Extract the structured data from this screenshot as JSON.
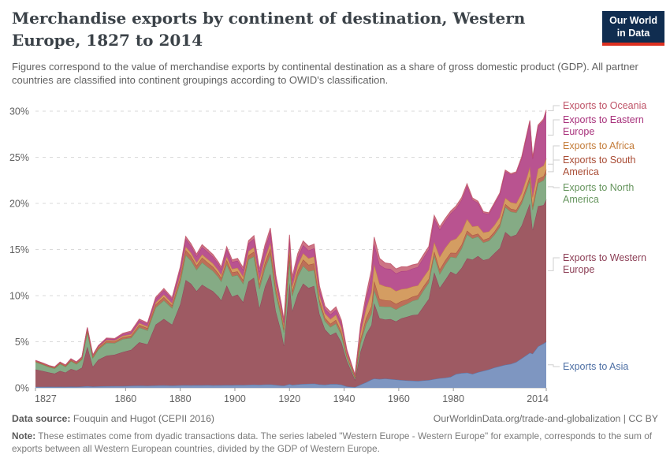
{
  "header": {
    "title": "Merchandise exports by continent of destination, Western Europe, 1827 to 2014",
    "subtitle": "Figures correspond to the value of merchandise exports by continental destination as a share of gross domestic product (GDP). All partner countries are classified into continent groupings according to OWID's classification.",
    "logo": {
      "line1": "Our World",
      "line2": "in Data",
      "bg_color": "#102d50",
      "accent_color": "#dc3020"
    }
  },
  "chart_data": {
    "type": "area",
    "stacked": true,
    "unit": "% of GDP",
    "grid": "dashed horizontal",
    "legend_position": "right",
    "xlim": [
      1827,
      2014
    ],
    "ylim": [
      0,
      30
    ],
    "x_ticks": [
      1827,
      1860,
      1880,
      1900,
      1920,
      1940,
      1960,
      1980,
      2014
    ],
    "y_ticks": [
      0,
      5,
      10,
      15,
      20,
      25,
      30
    ],
    "y_tick_suffix": "%",
    "x": [
      1827,
      1830,
      1832,
      1834,
      1836,
      1838,
      1840,
      1842,
      1844,
      1846,
      1848,
      1850,
      1853,
      1856,
      1859,
      1862,
      1865,
      1868,
      1871,
      1874,
      1877,
      1880,
      1882,
      1884,
      1886,
      1888,
      1890,
      1892,
      1894,
      1895,
      1897,
      1899,
      1901,
      1903,
      1905,
      1907,
      1909,
      1911,
      1913,
      1915,
      1917,
      1918,
      1920,
      1921,
      1923,
      1925,
      1927,
      1929,
      1931,
      1933,
      1935,
      1937,
      1939,
      1941,
      1944,
      1946,
      1948,
      1950,
      1951,
      1953,
      1955,
      1957,
      1959,
      1961,
      1963,
      1965,
      1967,
      1969,
      1971,
      1973,
      1975,
      1977,
      1979,
      1981,
      1983,
      1985,
      1987,
      1989,
      1991,
      1993,
      1995,
      1997,
      1999,
      2001,
      2003,
      2005,
      2007,
      2008,
      2009,
      2011,
      2013,
      2014
    ],
    "series": [
      {
        "name": "asia",
        "label": "Exports to Asia",
        "color": "#4d6fa4",
        "fill": "#7e96c1",
        "values": [
          0.1,
          0.1,
          0.12,
          0.1,
          0.12,
          0.11,
          0.13,
          0.12,
          0.14,
          0.18,
          0.14,
          0.16,
          0.18,
          0.2,
          0.19,
          0.22,
          0.25,
          0.22,
          0.26,
          0.28,
          0.25,
          0.28,
          0.3,
          0.28,
          0.3,
          0.29,
          0.31,
          0.28,
          0.3,
          0.29,
          0.31,
          0.3,
          0.32,
          0.31,
          0.33,
          0.35,
          0.33,
          0.36,
          0.38,
          0.32,
          0.26,
          0.25,
          0.4,
          0.32,
          0.38,
          0.42,
          0.44,
          0.46,
          0.38,
          0.34,
          0.4,
          0.42,
          0.35,
          0.15,
          0.08,
          0.35,
          0.6,
          0.9,
          1.0,
          0.95,
          1.0,
          0.95,
          0.9,
          0.85,
          0.8,
          0.78,
          0.75,
          0.8,
          0.85,
          0.95,
          1.05,
          1.1,
          1.2,
          1.5,
          1.6,
          1.65,
          1.5,
          1.7,
          1.85,
          2.0,
          2.2,
          2.35,
          2.5,
          2.6,
          2.8,
          3.2,
          3.6,
          3.8,
          3.7,
          4.5,
          4.8,
          5.0
        ]
      },
      {
        "name": "western_europe",
        "label": "Exports to Western Europe",
        "color": "#8d4057",
        "fill": "#9e5a63",
        "values": [
          1.9,
          1.7,
          1.55,
          1.45,
          1.72,
          1.55,
          1.92,
          1.75,
          2.05,
          4.3,
          2.15,
          2.9,
          3.3,
          3.4,
          3.7,
          3.9,
          4.7,
          4.5,
          6.6,
          7.2,
          6.6,
          8.8,
          11.4,
          11.0,
          10.2,
          10.9,
          10.5,
          10.2,
          9.6,
          9.2,
          10.8,
          9.6,
          9.8,
          9.0,
          11.2,
          11.6,
          8.3,
          10.6,
          12.0,
          8.0,
          5.8,
          4.3,
          11.0,
          8.0,
          9.8,
          10.9,
          10.4,
          10.6,
          7.6,
          6.0,
          5.3,
          5.6,
          4.6,
          2.8,
          0.8,
          3.6,
          5.2,
          5.9,
          8.2,
          6.6,
          6.4,
          6.5,
          6.3,
          6.7,
          6.9,
          7.1,
          7.2,
          8.0,
          8.8,
          11.6,
          9.8,
          10.6,
          11.4,
          10.8,
          11.4,
          12.4,
          12.4,
          12.6,
          12.0,
          12.0,
          12.4,
          12.8,
          14.4,
          13.8,
          13.8,
          14.4,
          15.6,
          16.2,
          13.4,
          15.2,
          15.0,
          15.4
        ]
      },
      {
        "name": "north_america",
        "label": "Exports to North America",
        "color": "#66955e",
        "fill": "#85ab85",
        "values": [
          0.8,
          0.68,
          0.58,
          0.55,
          0.75,
          0.62,
          0.85,
          0.7,
          0.88,
          1.55,
          0.95,
          1.1,
          1.4,
          1.25,
          1.4,
          1.3,
          1.6,
          1.5,
          1.85,
          2.0,
          1.8,
          2.4,
          2.7,
          2.5,
          2.3,
          2.4,
          2.3,
          2.2,
          2.1,
          2.05,
          2.3,
          2.2,
          2.1,
          2.0,
          2.4,
          2.3,
          2.1,
          2.0,
          2.05,
          1.9,
          1.6,
          1.45,
          2.4,
          1.65,
          1.9,
          1.9,
          1.8,
          1.7,
          1.1,
          0.9,
          0.9,
          0.95,
          0.8,
          0.4,
          0.2,
          0.9,
          1.1,
          1.2,
          1.4,
          1.3,
          1.4,
          1.35,
          1.3,
          1.3,
          1.4,
          1.55,
          1.65,
          1.75,
          1.75,
          1.8,
          1.5,
          1.65,
          1.6,
          1.8,
          2.1,
          2.6,
          2.3,
          2.1,
          1.9,
          1.95,
          2.0,
          2.3,
          2.7,
          2.7,
          2.4,
          2.4,
          2.4,
          2.5,
          2.2,
          2.5,
          2.7,
          2.8
        ]
      },
      {
        "name": "south_america",
        "label": "Exports to South America",
        "color": "#a94c35",
        "fill": "#bc6f59",
        "values": [
          0.08,
          0.08,
          0.07,
          0.07,
          0.09,
          0.08,
          0.1,
          0.09,
          0.11,
          0.2,
          0.12,
          0.15,
          0.18,
          0.16,
          0.2,
          0.22,
          0.28,
          0.25,
          0.32,
          0.36,
          0.3,
          0.45,
          0.55,
          0.5,
          0.46,
          0.52,
          0.5,
          0.45,
          0.4,
          0.38,
          0.45,
          0.42,
          0.4,
          0.38,
          0.45,
          0.5,
          0.48,
          0.6,
          0.7,
          0.5,
          0.38,
          0.35,
          0.7,
          0.5,
          0.62,
          0.7,
          0.7,
          0.72,
          0.45,
          0.36,
          0.35,
          0.4,
          0.33,
          0.15,
          0.06,
          0.45,
          0.65,
          0.85,
          1.0,
          0.8,
          0.7,
          0.65,
          0.6,
          0.55,
          0.48,
          0.45,
          0.45,
          0.44,
          0.42,
          0.45,
          0.5,
          0.48,
          0.45,
          0.52,
          0.42,
          0.4,
          0.34,
          0.32,
          0.3,
          0.3,
          0.33,
          0.36,
          0.34,
          0.32,
          0.3,
          0.35,
          0.42,
          0.45,
          0.4,
          0.45,
          0.44,
          0.45
        ]
      },
      {
        "name": "africa",
        "label": "Exports to Africa",
        "color": "#c47d3b",
        "fill": "#d49d62",
        "values": [
          0.04,
          0.04,
          0.04,
          0.04,
          0.05,
          0.05,
          0.06,
          0.06,
          0.07,
          0.12,
          0.08,
          0.1,
          0.12,
          0.12,
          0.15,
          0.16,
          0.2,
          0.18,
          0.22,
          0.26,
          0.22,
          0.32,
          0.36,
          0.34,
          0.32,
          0.36,
          0.36,
          0.35,
          0.33,
          0.32,
          0.4,
          0.38,
          0.4,
          0.38,
          0.45,
          0.48,
          0.46,
          0.52,
          0.6,
          0.48,
          0.38,
          0.35,
          0.65,
          0.5,
          0.6,
          0.68,
          0.7,
          0.75,
          0.55,
          0.48,
          0.5,
          0.55,
          0.48,
          0.25,
          0.12,
          0.65,
          1.0,
          1.5,
          1.8,
          1.6,
          1.5,
          1.45,
          1.4,
          1.3,
          1.2,
          1.1,
          1.05,
          1.0,
          1.0,
          1.0,
          1.35,
          1.35,
          1.3,
          1.55,
          1.4,
          1.25,
          0.95,
          0.85,
          0.8,
          0.7,
          0.7,
          0.7,
          0.65,
          0.7,
          0.7,
          0.75,
          0.9,
          1.0,
          0.95,
          1.1,
          1.15,
          1.2
        ]
      },
      {
        "name": "eastern_europe",
        "label": "Exports to Eastern Europe",
        "color": "#a8327c",
        "fill": "#b95390",
        "values": [
          0.04,
          0.04,
          0.04,
          0.04,
          0.05,
          0.05,
          0.07,
          0.07,
          0.08,
          0.15,
          0.1,
          0.12,
          0.16,
          0.16,
          0.2,
          0.25,
          0.3,
          0.3,
          0.42,
          0.5,
          0.45,
          0.65,
          0.85,
          0.75,
          0.7,
          0.8,
          0.78,
          0.74,
          0.68,
          0.65,
          0.8,
          0.74,
          0.76,
          0.72,
          0.85,
          0.95,
          0.9,
          1.05,
          1.2,
          0.7,
          0.45,
          0.4,
          1.0,
          0.7,
          0.85,
          0.88,
          0.86,
          0.9,
          0.6,
          0.5,
          0.5,
          0.55,
          0.5,
          0.3,
          0.1,
          0.55,
          1.0,
          1.8,
          2.2,
          2.1,
          1.95,
          2.0,
          1.9,
          1.95,
          1.9,
          1.95,
          2.0,
          2.1,
          2.2,
          2.6,
          2.95,
          2.9,
          2.95,
          3.3,
          3.45,
          3.6,
          2.9,
          2.5,
          2.1,
          1.9,
          2.3,
          2.5,
          2.9,
          3.0,
          3.3,
          3.8,
          4.6,
          4.9,
          4.2,
          4.6,
          4.9,
          5.1
        ]
      },
      {
        "name": "oceania",
        "label": "Exports to Oceania",
        "color": "#bf5468",
        "fill": "#cd7585",
        "values": [
          0.02,
          0.02,
          0.02,
          0.02,
          0.02,
          0.02,
          0.03,
          0.03,
          0.03,
          0.05,
          0.04,
          0.05,
          0.06,
          0.06,
          0.08,
          0.1,
          0.12,
          0.1,
          0.15,
          0.18,
          0.15,
          0.22,
          0.26,
          0.24,
          0.22,
          0.26,
          0.25,
          0.24,
          0.22,
          0.21,
          0.25,
          0.24,
          0.26,
          0.25,
          0.28,
          0.32,
          0.3,
          0.36,
          0.4,
          0.32,
          0.26,
          0.25,
          0.45,
          0.35,
          0.4,
          0.45,
          0.44,
          0.46,
          0.32,
          0.28,
          0.3,
          0.32,
          0.28,
          0.12,
          0.04,
          0.32,
          0.48,
          0.65,
          0.75,
          0.68,
          0.6,
          0.55,
          0.5,
          0.48,
          0.44,
          0.4,
          0.36,
          0.33,
          0.31,
          0.3,
          0.32,
          0.28,
          0.26,
          0.26,
          0.25,
          0.24,
          0.2,
          0.17,
          0.15,
          0.13,
          0.13,
          0.13,
          0.12,
          0.12,
          0.12,
          0.13,
          0.14,
          0.15,
          0.13,
          0.15,
          0.16,
          0.18
        ]
      }
    ],
    "title": "Merchandise exports by continent of destination, Western Europe, 1827 to 2014",
    "xlabel": "",
    "ylabel": ""
  },
  "footer": {
    "source_label": "Data source:",
    "source_text": " Fouquin and Hugot (CEPII 2016)",
    "link_text": "OurWorldinData.org/trade-and-globalization | CC BY",
    "note_label": "Note:",
    "note_text": " These estimates come from dyadic transactions data. The series labeled \"Western Europe - Western Europe\" for example, corresponds to the sum of exports between all Western European countries, divided by the GDP of Western Europe."
  }
}
